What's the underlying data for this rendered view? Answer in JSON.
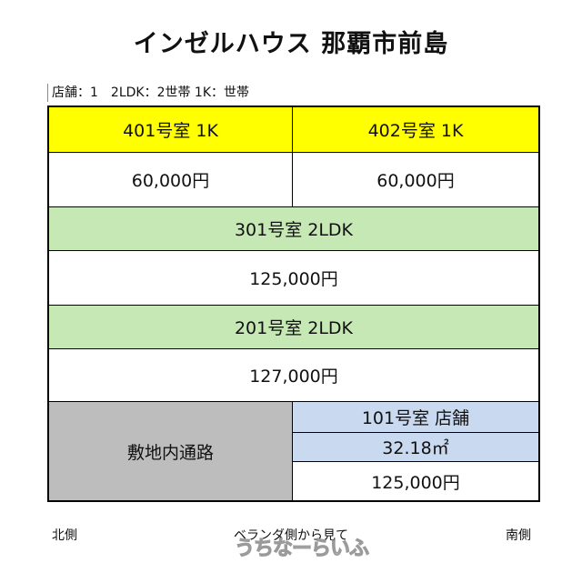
{
  "title": "インゼルハウス 那覇市前島",
  "summary": "店舗：1　2LDK：2世帯 1K：世帯",
  "floors": {
    "f4": {
      "room_401": {
        "label": "401号室 1K",
        "rent": "60,000円"
      },
      "room_402": {
        "label": "402号室 1K",
        "rent": "60,000円"
      }
    },
    "f3": {
      "label": "301号室 2LDK",
      "rent": "125,000円"
    },
    "f2": {
      "label": "201号室 2LDK",
      "rent": "127,000円"
    },
    "f1": {
      "road": "敷地内通路",
      "shop": {
        "label": "101号室 店舗",
        "area": "32.18㎡",
        "rent": "125,000円"
      }
    }
  },
  "footer": {
    "left": "北側",
    "center": "ベランダ側から見て",
    "right": "南側"
  },
  "watermark": "うちなーらいふ",
  "colors": {
    "room_1k": "#ffff00",
    "room_2ldk": "#c6e8b4",
    "road": "#bdbdbd",
    "shop": "#c9d9f0"
  }
}
